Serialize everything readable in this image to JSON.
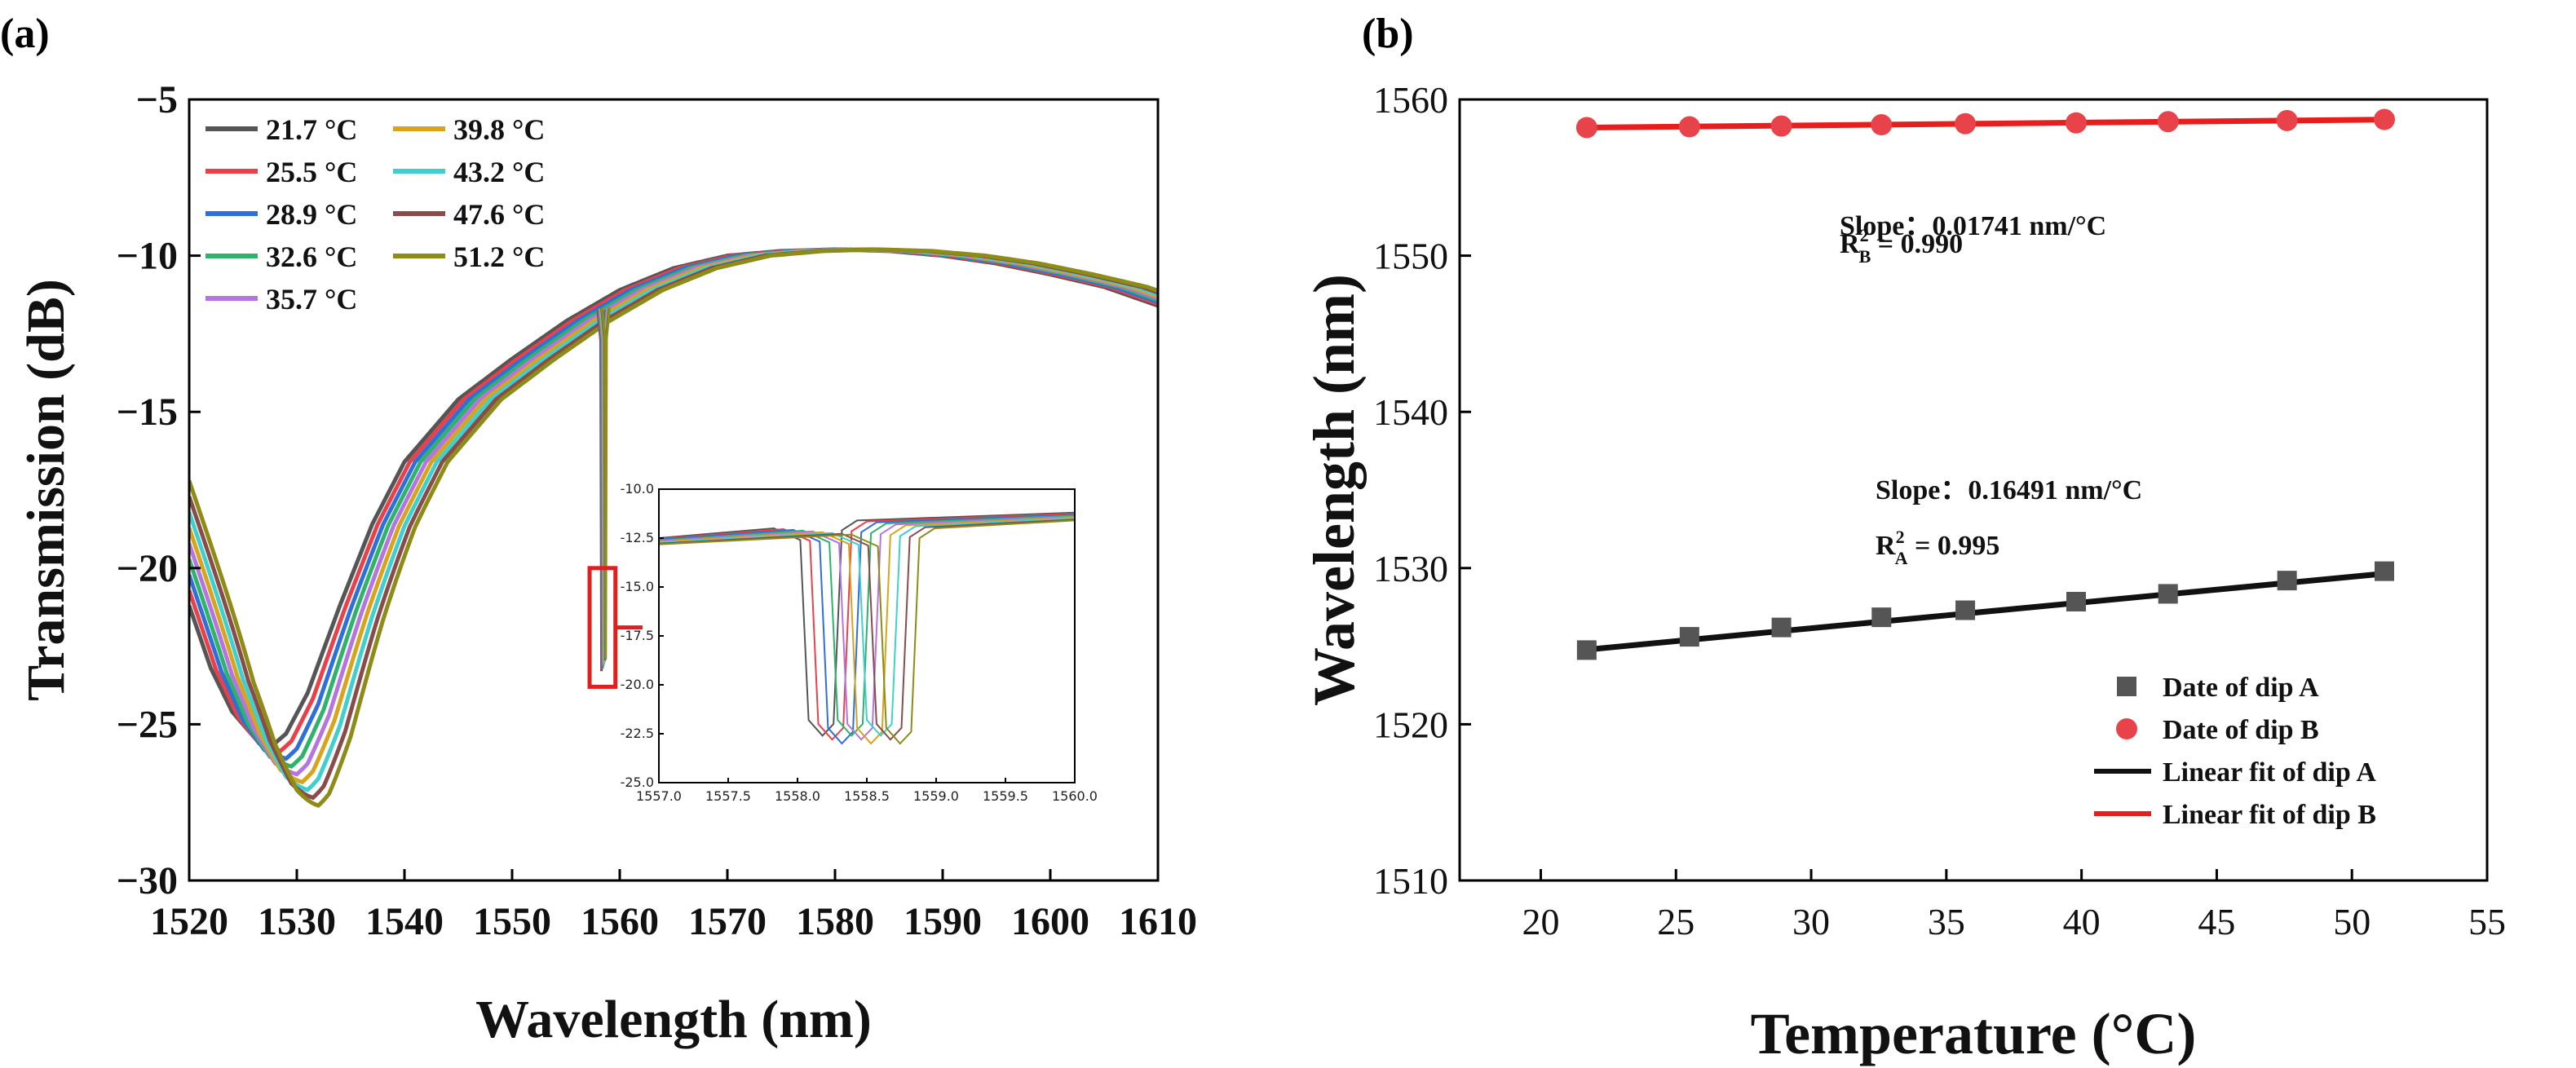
{
  "panel_a_label": "(a)",
  "panel_b_label": "(b)",
  "chart_data": [
    {
      "type": "line",
      "panel": "(a)",
      "xlabel": "Wavelength (nm)",
      "ylabel": "Transmission (dB)",
      "xlim": [
        1520,
        1610
      ],
      "ylim": [
        -30,
        -5
      ],
      "xticks": [
        1520,
        1530,
        1540,
        1550,
        1560,
        1570,
        1580,
        1590,
        1600,
        1610
      ],
      "yticks": [
        -30,
        -25,
        -20,
        -15,
        -10,
        -5
      ],
      "shape_points": [
        [
          1520,
          -21.2
        ],
        [
          1522,
          -23.2
        ],
        [
          1524,
          -24.6
        ],
        [
          1526,
          -25.4
        ],
        [
          1528,
          -25.6
        ],
        [
          1529,
          -25.3
        ],
        [
          1531,
          -24.0
        ],
        [
          1534,
          -21.2
        ],
        [
          1537,
          -18.6
        ],
        [
          1540,
          -16.6
        ],
        [
          1545,
          -14.6
        ],
        [
          1550,
          -13.3
        ],
        [
          1555,
          -12.1
        ],
        [
          1560,
          -11.1
        ],
        [
          1565,
          -10.4
        ],
        [
          1570,
          -10.0
        ],
        [
          1575,
          -9.85
        ],
        [
          1580,
          -9.8
        ],
        [
          1585,
          -9.85
        ],
        [
          1590,
          -10.0
        ],
        [
          1595,
          -10.25
        ],
        [
          1600,
          -10.6
        ],
        [
          1605,
          -11.0
        ],
        [
          1610,
          -11.6
        ]
      ],
      "dip_start_db": -25.7,
      "dip_shift_db_per_step": 0.25,
      "series": [
        {
          "name": "21.7 °C",
          "color": "#555555",
          "shift_nm": 0.0
        },
        {
          "name": "25.5 °C",
          "color": "#e8414a",
          "shift_nm": 0.5
        },
        {
          "name": "28.9 °C",
          "color": "#2e6fd9",
          "shift_nm": 1.0
        },
        {
          "name": "32.6 °C",
          "color": "#2fb36a",
          "shift_nm": 1.5
        },
        {
          "name": "35.7 °C",
          "color": "#b574e0",
          "shift_nm": 2.0
        },
        {
          "name": "39.8 °C",
          "color": "#d8a41c",
          "shift_nm": 2.5
        },
        {
          "name": "43.2 °C",
          "color": "#3fcfcf",
          "shift_nm": 3.0
        },
        {
          "name": "47.6 °C",
          "color": "#8a4b4b",
          "shift_nm": 3.5
        },
        {
          "name": "51.2 °C",
          "color": "#8c8c16",
          "shift_nm": 4.0
        }
      ],
      "narrow_dip": {
        "wavelength": 1558.5,
        "depth_db": -23.3
      },
      "zoom_box": {
        "x": [
          1557.2,
          1559.6
        ],
        "y": [
          -23.8,
          -20.0
        ],
        "color": "#e02020"
      },
      "inset": {
        "xlim": [
          1557.0,
          1560.0
        ],
        "ylim": [
          -25.0,
          -10.0
        ],
        "xticks": [
          "1557.0",
          "1557.5",
          "1558.0",
          "1558.5",
          "1559.0",
          "1559.5",
          "1560.0"
        ],
        "yticks": [
          "-10.0",
          "-12.5",
          "-15.0",
          "-17.5",
          "-20.0",
          "-22.5",
          "-25.0"
        ],
        "dip_centers": [
          1558.18,
          1558.25,
          1558.32,
          1558.39,
          1558.46,
          1558.53,
          1558.6,
          1558.67,
          1558.74
        ],
        "dip_depth": -22.6
      }
    },
    {
      "type": "scatter",
      "panel": "(b)",
      "xlabel": "Temperature (°C)",
      "ylabel": "Wavelength (nm)",
      "xlim": [
        17,
        55
      ],
      "ylim": [
        1510,
        1560
      ],
      "xticks": [
        20,
        25,
        30,
        35,
        40,
        45,
        50,
        55
      ],
      "yticks": [
        1510,
        1520,
        1530,
        1540,
        1550,
        1560
      ],
      "x": [
        21.7,
        25.5,
        28.9,
        32.6,
        35.7,
        39.8,
        43.2,
        47.6,
        51.2
      ],
      "series": [
        {
          "name": "Date of dip A",
          "marker": "square",
          "color": "#555555",
          "values": [
            1524.75,
            1525.6,
            1526.2,
            1526.85,
            1527.3,
            1527.85,
            1528.35,
            1529.2,
            1529.8
          ]
        },
        {
          "name": "Date of dip B",
          "marker": "circle",
          "color": "#e8434a",
          "values": [
            1558.2,
            1558.25,
            1558.3,
            1558.38,
            1558.45,
            1558.5,
            1558.58,
            1558.65,
            1558.72
          ]
        }
      ],
      "fits": [
        {
          "name": "Linear fit of dip A",
          "color": "#111111",
          "slope": 0.16491,
          "intercept": 1521.2
        },
        {
          "name": "Linear fit of dip B",
          "color": "#e61e1e",
          "slope": 0.01741,
          "intercept": 1557.82
        }
      ],
      "annotations": [
        {
          "slope_text": "Slope：0.16491 nm/°C",
          "r2_letter": "R",
          "r2_sub": "A",
          "r2_sup": "2",
          "r2_value": " = 0.995"
        },
        {
          "slope_text": "Slope：0.01741 nm/°C",
          "r2_letter": "R",
          "r2_sub": "B",
          "r2_sup": "2",
          "r2_value": " = 0.990"
        }
      ]
    }
  ]
}
